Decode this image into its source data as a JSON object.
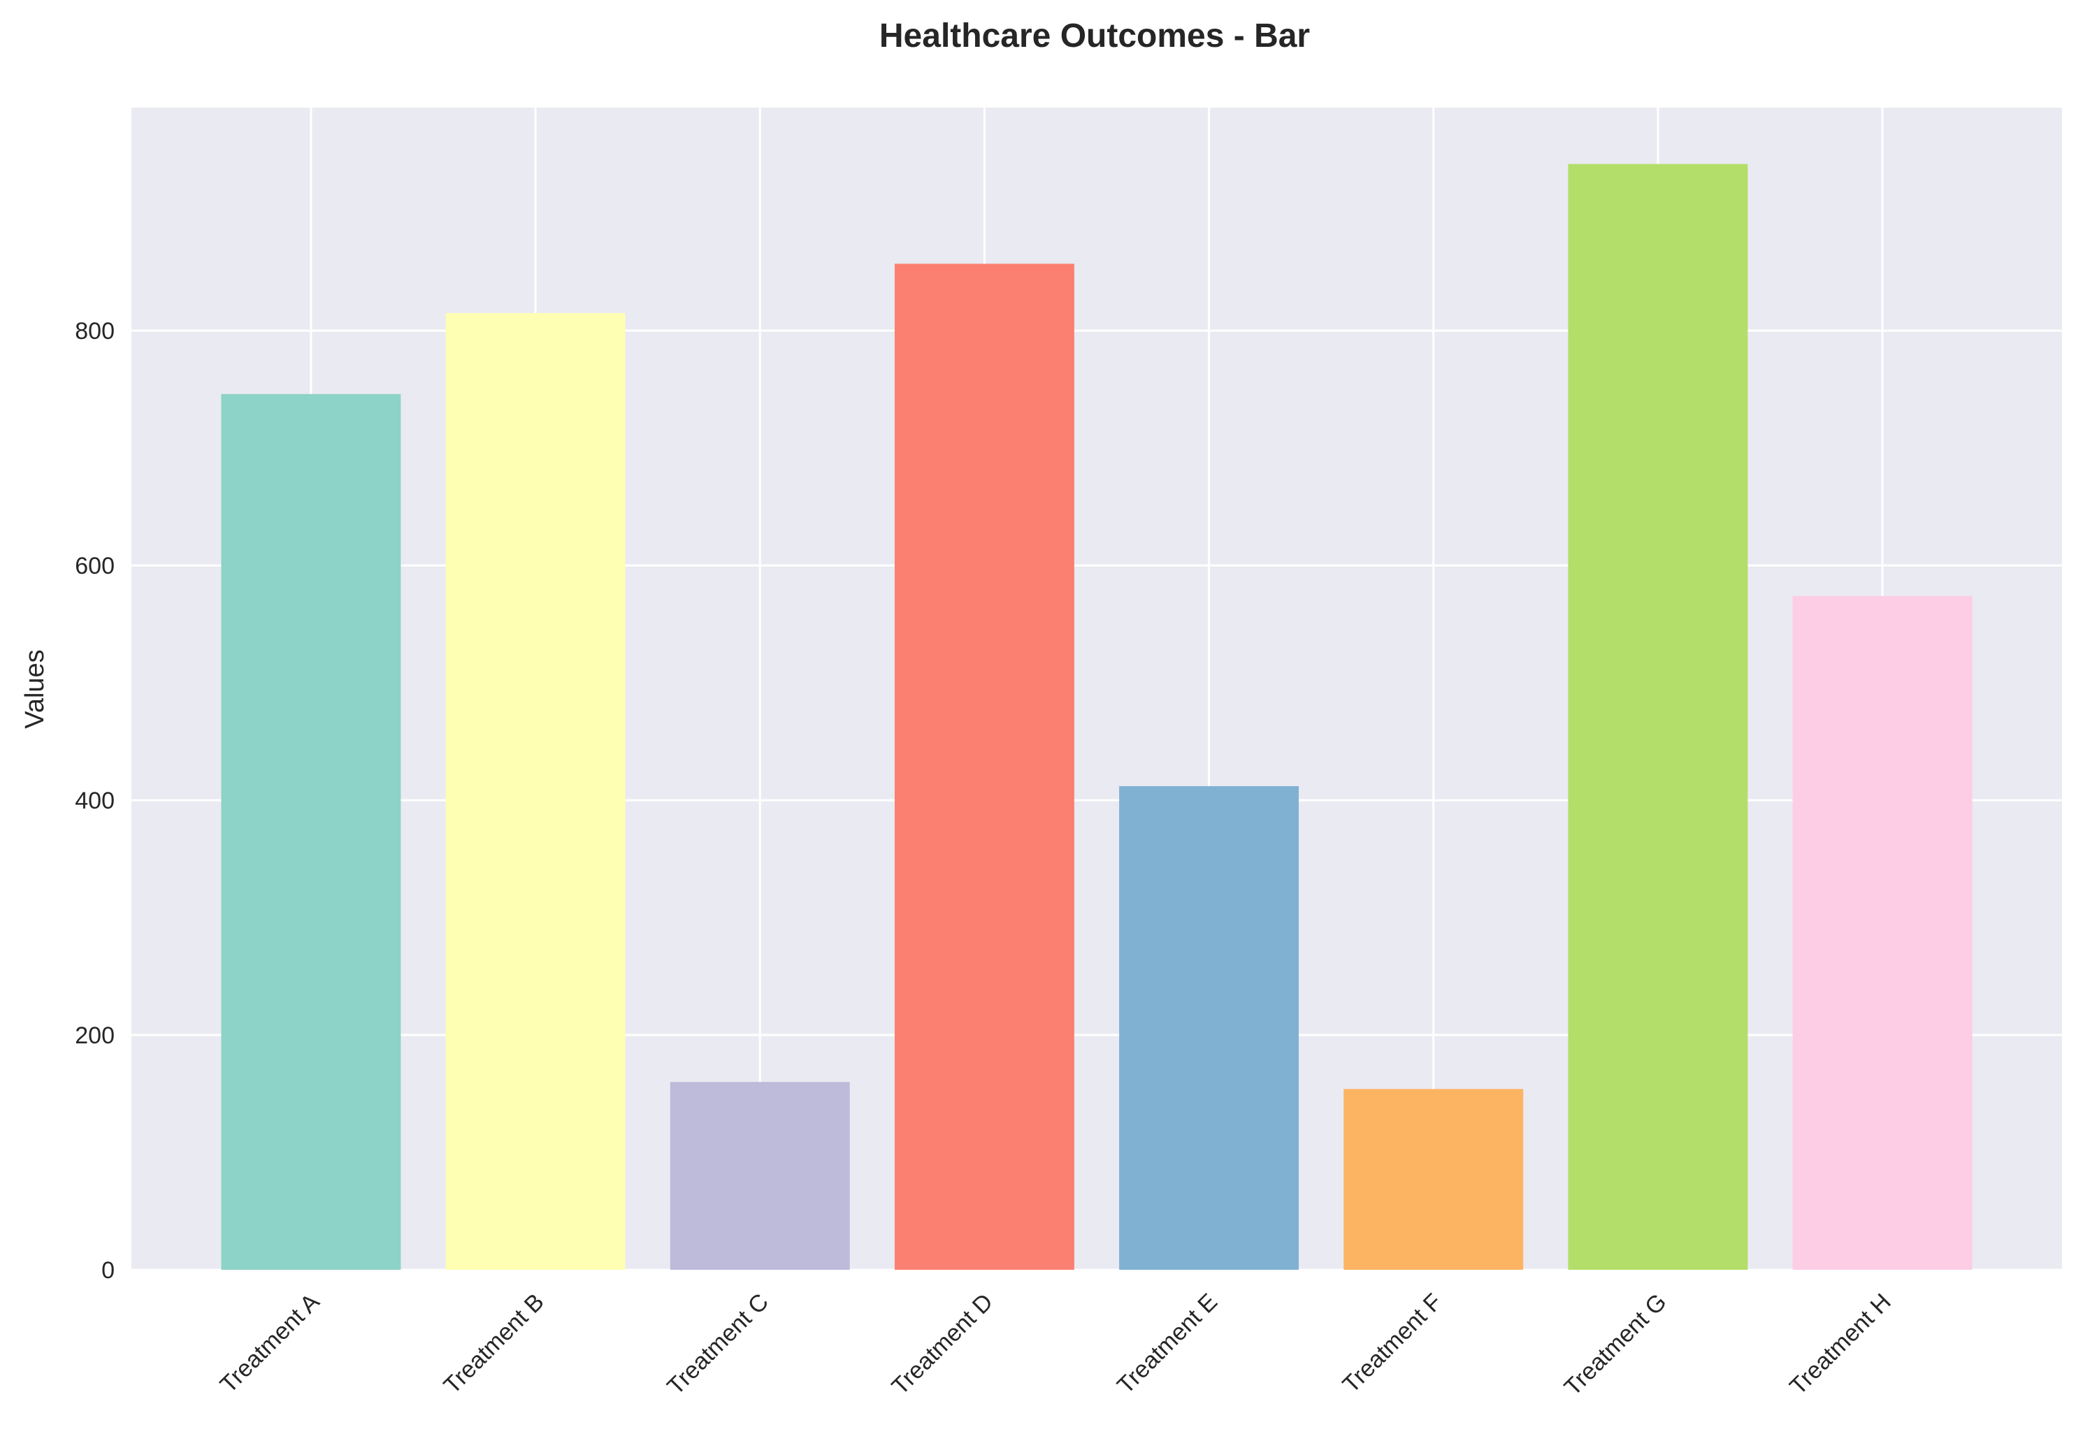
{
  "chart_data": {
    "type": "bar",
    "title": "Healthcare Outcomes - Bar",
    "xlabel": "",
    "ylabel": "Values",
    "categories": [
      "Treatment A",
      "Treatment B",
      "Treatment C",
      "Treatment D",
      "Treatment E",
      "Treatment F",
      "Treatment G",
      "Treatment H"
    ],
    "values": [
      746,
      815,
      160,
      857,
      412,
      154,
      942,
      574
    ],
    "colors": [
      "#8dd3c7",
      "#ffffb3",
      "#bebada",
      "#fb8072",
      "#80b1d3",
      "#fdb462",
      "#b3de69",
      "#fccde5"
    ],
    "ylim": [
      0,
      990
    ],
    "yticks": [
      0,
      200,
      400,
      600,
      800
    ],
    "grid": true,
    "background_color": "#eaeaf2",
    "grid_color": "#ffffff"
  }
}
